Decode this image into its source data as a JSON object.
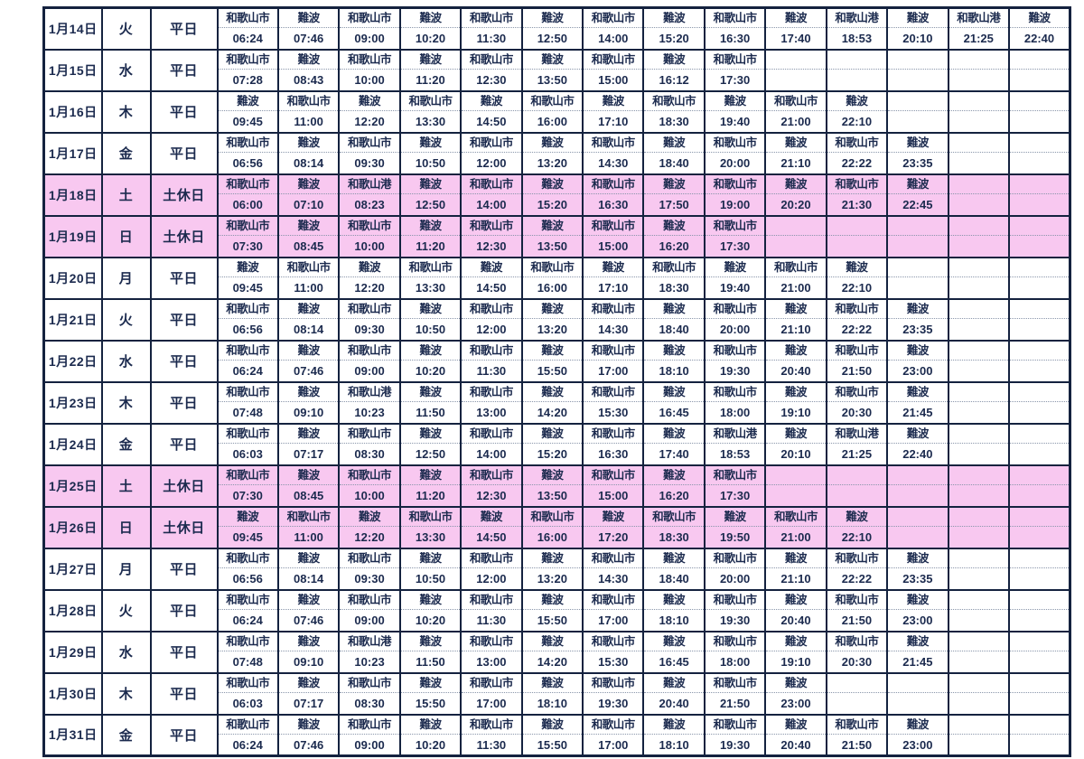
{
  "colors": {
    "text": "#1b2a4e",
    "grid_border": "#14223f",
    "holiday_row_bg": "#f8c8f0",
    "weekday_row_bg": "#ffffff"
  },
  "slot_count": 14,
  "rows": [
    {
      "date": "1月14日",
      "day": "火",
      "type": "平日",
      "holiday": false,
      "entries": [
        {
          "station": "和歌山市",
          "time": "06:24"
        },
        {
          "station": "難波",
          "time": "07:46"
        },
        {
          "station": "和歌山市",
          "time": "09:00"
        },
        {
          "station": "難波",
          "time": "10:20"
        },
        {
          "station": "和歌山市",
          "time": "11:30"
        },
        {
          "station": "難波",
          "time": "12:50"
        },
        {
          "station": "和歌山市",
          "time": "14:00"
        },
        {
          "station": "難波",
          "time": "15:20"
        },
        {
          "station": "和歌山市",
          "time": "16:30"
        },
        {
          "station": "難波",
          "time": "17:40"
        },
        {
          "station": "和歌山港",
          "time": "18:53"
        },
        {
          "station": "難波",
          "time": "20:10"
        },
        {
          "station": "和歌山港",
          "time": "21:25"
        },
        {
          "station": "難波",
          "time": "22:40"
        }
      ]
    },
    {
      "date": "1月15日",
      "day": "水",
      "type": "平日",
      "holiday": false,
      "entries": [
        {
          "station": "和歌山市",
          "time": "07:28"
        },
        {
          "station": "難波",
          "time": "08:43"
        },
        {
          "station": "和歌山市",
          "time": "10:00"
        },
        {
          "station": "難波",
          "time": "11:20"
        },
        {
          "station": "和歌山市",
          "time": "12:30"
        },
        {
          "station": "難波",
          "time": "13:50"
        },
        {
          "station": "和歌山市",
          "time": "15:00"
        },
        {
          "station": "難波",
          "time": "16:12"
        },
        {
          "station": "和歌山市",
          "time": "17:30"
        }
      ]
    },
    {
      "date": "1月16日",
      "day": "木",
      "type": "平日",
      "holiday": false,
      "entries": [
        {
          "station": "難波",
          "time": "09:45"
        },
        {
          "station": "和歌山市",
          "time": "11:00"
        },
        {
          "station": "難波",
          "time": "12:20"
        },
        {
          "station": "和歌山市",
          "time": "13:30"
        },
        {
          "station": "難波",
          "time": "14:50"
        },
        {
          "station": "和歌山市",
          "time": "16:00"
        },
        {
          "station": "難波",
          "time": "17:10"
        },
        {
          "station": "和歌山市",
          "time": "18:30"
        },
        {
          "station": "難波",
          "time": "19:40"
        },
        {
          "station": "和歌山市",
          "time": "21:00"
        },
        {
          "station": "難波",
          "time": "22:10"
        }
      ]
    },
    {
      "date": "1月17日",
      "day": "金",
      "type": "平日",
      "holiday": false,
      "entries": [
        {
          "station": "和歌山市",
          "time": "06:56"
        },
        {
          "station": "難波",
          "time": "08:14"
        },
        {
          "station": "和歌山市",
          "time": "09:30"
        },
        {
          "station": "難波",
          "time": "10:50"
        },
        {
          "station": "和歌山市",
          "time": "12:00"
        },
        {
          "station": "難波",
          "time": "13:20"
        },
        {
          "station": "和歌山市",
          "time": "14:30"
        },
        {
          "station": "難波",
          "time": "18:40"
        },
        {
          "station": "和歌山市",
          "time": "20:00"
        },
        {
          "station": "難波",
          "time": "21:10"
        },
        {
          "station": "和歌山市",
          "time": "22:22"
        },
        {
          "station": "難波",
          "time": "23:35"
        }
      ]
    },
    {
      "date": "1月18日",
      "day": "土",
      "type": "土休日",
      "holiday": true,
      "entries": [
        {
          "station": "和歌山市",
          "time": "06:00"
        },
        {
          "station": "難波",
          "time": "07:10"
        },
        {
          "station": "和歌山港",
          "time": "08:23"
        },
        {
          "station": "難波",
          "time": "12:50"
        },
        {
          "station": "和歌山市",
          "time": "14:00"
        },
        {
          "station": "難波",
          "time": "15:20"
        },
        {
          "station": "和歌山市",
          "time": "16:30"
        },
        {
          "station": "難波",
          "time": "17:50"
        },
        {
          "station": "和歌山市",
          "time": "19:00"
        },
        {
          "station": "難波",
          "time": "20:20"
        },
        {
          "station": "和歌山市",
          "time": "21:30"
        },
        {
          "station": "難波",
          "time": "22:45"
        }
      ]
    },
    {
      "date": "1月19日",
      "day": "日",
      "type": "土休日",
      "holiday": true,
      "entries": [
        {
          "station": "和歌山市",
          "time": "07:30"
        },
        {
          "station": "難波",
          "time": "08:45"
        },
        {
          "station": "和歌山市",
          "time": "10:00"
        },
        {
          "station": "難波",
          "time": "11:20"
        },
        {
          "station": "和歌山市",
          "time": "12:30"
        },
        {
          "station": "難波",
          "time": "13:50"
        },
        {
          "station": "和歌山市",
          "time": "15:00"
        },
        {
          "station": "難波",
          "time": "16:20"
        },
        {
          "station": "和歌山市",
          "time": "17:30"
        }
      ]
    },
    {
      "date": "1月20日",
      "day": "月",
      "type": "平日",
      "holiday": false,
      "entries": [
        {
          "station": "難波",
          "time": "09:45"
        },
        {
          "station": "和歌山市",
          "time": "11:00"
        },
        {
          "station": "難波",
          "time": "12:20"
        },
        {
          "station": "和歌山市",
          "time": "13:30"
        },
        {
          "station": "難波",
          "time": "14:50"
        },
        {
          "station": "和歌山市",
          "time": "16:00"
        },
        {
          "station": "難波",
          "time": "17:10"
        },
        {
          "station": "和歌山市",
          "time": "18:30"
        },
        {
          "station": "難波",
          "time": "19:40"
        },
        {
          "station": "和歌山市",
          "time": "21:00"
        },
        {
          "station": "難波",
          "time": "22:10"
        }
      ]
    },
    {
      "date": "1月21日",
      "day": "火",
      "type": "平日",
      "holiday": false,
      "entries": [
        {
          "station": "和歌山市",
          "time": "06:56"
        },
        {
          "station": "難波",
          "time": "08:14"
        },
        {
          "station": "和歌山市",
          "time": "09:30"
        },
        {
          "station": "難波",
          "time": "10:50"
        },
        {
          "station": "和歌山市",
          "time": "12:00"
        },
        {
          "station": "難波",
          "time": "13:20"
        },
        {
          "station": "和歌山市",
          "time": "14:30"
        },
        {
          "station": "難波",
          "time": "18:40"
        },
        {
          "station": "和歌山市",
          "time": "20:00"
        },
        {
          "station": "難波",
          "time": "21:10"
        },
        {
          "station": "和歌山市",
          "time": "22:22"
        },
        {
          "station": "難波",
          "time": "23:35"
        }
      ]
    },
    {
      "date": "1月22日",
      "day": "水",
      "type": "平日",
      "holiday": false,
      "entries": [
        {
          "station": "和歌山市",
          "time": "06:24"
        },
        {
          "station": "難波",
          "time": "07:46"
        },
        {
          "station": "和歌山市",
          "time": "09:00"
        },
        {
          "station": "難波",
          "time": "10:20"
        },
        {
          "station": "和歌山市",
          "time": "11:30"
        },
        {
          "station": "難波",
          "time": "15:50"
        },
        {
          "station": "和歌山市",
          "time": "17:00"
        },
        {
          "station": "難波",
          "time": "18:10"
        },
        {
          "station": "和歌山市",
          "time": "19:30"
        },
        {
          "station": "難波",
          "time": "20:40"
        },
        {
          "station": "和歌山市",
          "time": "21:50"
        },
        {
          "station": "難波",
          "time": "23:00"
        }
      ]
    },
    {
      "date": "1月23日",
      "day": "木",
      "type": "平日",
      "holiday": false,
      "entries": [
        {
          "station": "和歌山市",
          "time": "07:48"
        },
        {
          "station": "難波",
          "time": "09:10"
        },
        {
          "station": "和歌山港",
          "time": "10:23"
        },
        {
          "station": "難波",
          "time": "11:50"
        },
        {
          "station": "和歌山市",
          "time": "13:00"
        },
        {
          "station": "難波",
          "time": "14:20"
        },
        {
          "station": "和歌山市",
          "time": "15:30"
        },
        {
          "station": "難波",
          "time": "16:45"
        },
        {
          "station": "和歌山市",
          "time": "18:00"
        },
        {
          "station": "難波",
          "time": "19:10"
        },
        {
          "station": "和歌山市",
          "time": "20:30"
        },
        {
          "station": "難波",
          "time": "21:45"
        }
      ]
    },
    {
      "date": "1月24日",
      "day": "金",
      "type": "平日",
      "holiday": false,
      "entries": [
        {
          "station": "和歌山市",
          "time": "06:03"
        },
        {
          "station": "難波",
          "time": "07:17"
        },
        {
          "station": "和歌山市",
          "time": "08:30"
        },
        {
          "station": "難波",
          "time": "12:50"
        },
        {
          "station": "和歌山市",
          "time": "14:00"
        },
        {
          "station": "難波",
          "time": "15:20"
        },
        {
          "station": "和歌山市",
          "time": "16:30"
        },
        {
          "station": "難波",
          "time": "17:40"
        },
        {
          "station": "和歌山港",
          "time": "18:53"
        },
        {
          "station": "難波",
          "time": "20:10"
        },
        {
          "station": "和歌山港",
          "time": "21:25"
        },
        {
          "station": "難波",
          "time": "22:40"
        }
      ]
    },
    {
      "date": "1月25日",
      "day": "土",
      "type": "土休日",
      "holiday": true,
      "entries": [
        {
          "station": "和歌山市",
          "time": "07:30"
        },
        {
          "station": "難波",
          "time": "08:45"
        },
        {
          "station": "和歌山市",
          "time": "10:00"
        },
        {
          "station": "難波",
          "time": "11:20"
        },
        {
          "station": "和歌山市",
          "time": "12:30"
        },
        {
          "station": "難波",
          "time": "13:50"
        },
        {
          "station": "和歌山市",
          "time": "15:00"
        },
        {
          "station": "難波",
          "time": "16:20"
        },
        {
          "station": "和歌山市",
          "time": "17:30"
        }
      ]
    },
    {
      "date": "1月26日",
      "day": "日",
      "type": "土休日",
      "holiday": true,
      "entries": [
        {
          "station": "難波",
          "time": "09:45"
        },
        {
          "station": "和歌山市",
          "time": "11:00"
        },
        {
          "station": "難波",
          "time": "12:20"
        },
        {
          "station": "和歌山市",
          "time": "13:30"
        },
        {
          "station": "難波",
          "time": "14:50"
        },
        {
          "station": "和歌山市",
          "time": "16:00"
        },
        {
          "station": "難波",
          "time": "17:20"
        },
        {
          "station": "和歌山市",
          "time": "18:30"
        },
        {
          "station": "難波",
          "time": "19:50"
        },
        {
          "station": "和歌山市",
          "time": "21:00"
        },
        {
          "station": "難波",
          "time": "22:10"
        }
      ]
    },
    {
      "date": "1月27日",
      "day": "月",
      "type": "平日",
      "holiday": false,
      "entries": [
        {
          "station": "和歌山市",
          "time": "06:56"
        },
        {
          "station": "難波",
          "time": "08:14"
        },
        {
          "station": "和歌山市",
          "time": "09:30"
        },
        {
          "station": "難波",
          "time": "10:50"
        },
        {
          "station": "和歌山市",
          "time": "12:00"
        },
        {
          "station": "難波",
          "time": "13:20"
        },
        {
          "station": "和歌山市",
          "time": "14:30"
        },
        {
          "station": "難波",
          "time": "18:40"
        },
        {
          "station": "和歌山市",
          "time": "20:00"
        },
        {
          "station": "難波",
          "time": "21:10"
        },
        {
          "station": "和歌山市",
          "time": "22:22"
        },
        {
          "station": "難波",
          "time": "23:35"
        }
      ]
    },
    {
      "date": "1月28日",
      "day": "火",
      "type": "平日",
      "holiday": false,
      "entries": [
        {
          "station": "和歌山市",
          "time": "06:24"
        },
        {
          "station": "難波",
          "time": "07:46"
        },
        {
          "station": "和歌山市",
          "time": "09:00"
        },
        {
          "station": "難波",
          "time": "10:20"
        },
        {
          "station": "和歌山市",
          "time": "11:30"
        },
        {
          "station": "難波",
          "time": "15:50"
        },
        {
          "station": "和歌山市",
          "time": "17:00"
        },
        {
          "station": "難波",
          "time": "18:10"
        },
        {
          "station": "和歌山市",
          "time": "19:30"
        },
        {
          "station": "難波",
          "time": "20:40"
        },
        {
          "station": "和歌山市",
          "time": "21:50"
        },
        {
          "station": "難波",
          "time": "23:00"
        }
      ]
    },
    {
      "date": "1月29日",
      "day": "水",
      "type": "平日",
      "holiday": false,
      "entries": [
        {
          "station": "和歌山市",
          "time": "07:48"
        },
        {
          "station": "難波",
          "time": "09:10"
        },
        {
          "station": "和歌山港",
          "time": "10:23"
        },
        {
          "station": "難波",
          "time": "11:50"
        },
        {
          "station": "和歌山市",
          "time": "13:00"
        },
        {
          "station": "難波",
          "time": "14:20"
        },
        {
          "station": "和歌山市",
          "time": "15:30"
        },
        {
          "station": "難波",
          "time": "16:45"
        },
        {
          "station": "和歌山市",
          "time": "18:00"
        },
        {
          "station": "難波",
          "time": "19:10"
        },
        {
          "station": "和歌山市",
          "time": "20:30"
        },
        {
          "station": "難波",
          "time": "21:45"
        }
      ]
    },
    {
      "date": "1月30日",
      "day": "木",
      "type": "平日",
      "holiday": false,
      "entries": [
        {
          "station": "和歌山市",
          "time": "06:03"
        },
        {
          "station": "難波",
          "time": "07:17"
        },
        {
          "station": "和歌山市",
          "time": "08:30"
        },
        {
          "station": "難波",
          "time": "15:50"
        },
        {
          "station": "和歌山市",
          "time": "17:00"
        },
        {
          "station": "難波",
          "time": "18:10"
        },
        {
          "station": "和歌山市",
          "time": "19:30"
        },
        {
          "station": "難波",
          "time": "20:40"
        },
        {
          "station": "和歌山市",
          "time": "21:50"
        },
        {
          "station": "難波",
          "time": "23:00"
        }
      ]
    },
    {
      "date": "1月31日",
      "day": "金",
      "type": "平日",
      "holiday": false,
      "entries": [
        {
          "station": "和歌山市",
          "time": "06:24"
        },
        {
          "station": "難波",
          "time": "07:46"
        },
        {
          "station": "和歌山市",
          "time": "09:00"
        },
        {
          "station": "難波",
          "time": "10:20"
        },
        {
          "station": "和歌山市",
          "time": "11:30"
        },
        {
          "station": "難波",
          "time": "15:50"
        },
        {
          "station": "和歌山市",
          "time": "17:00"
        },
        {
          "station": "難波",
          "time": "18:10"
        },
        {
          "station": "和歌山市",
          "time": "19:30"
        },
        {
          "station": "難波",
          "time": "20:40"
        },
        {
          "station": "和歌山市",
          "time": "21:50"
        },
        {
          "station": "難波",
          "time": "23:00"
        }
      ]
    }
  ]
}
